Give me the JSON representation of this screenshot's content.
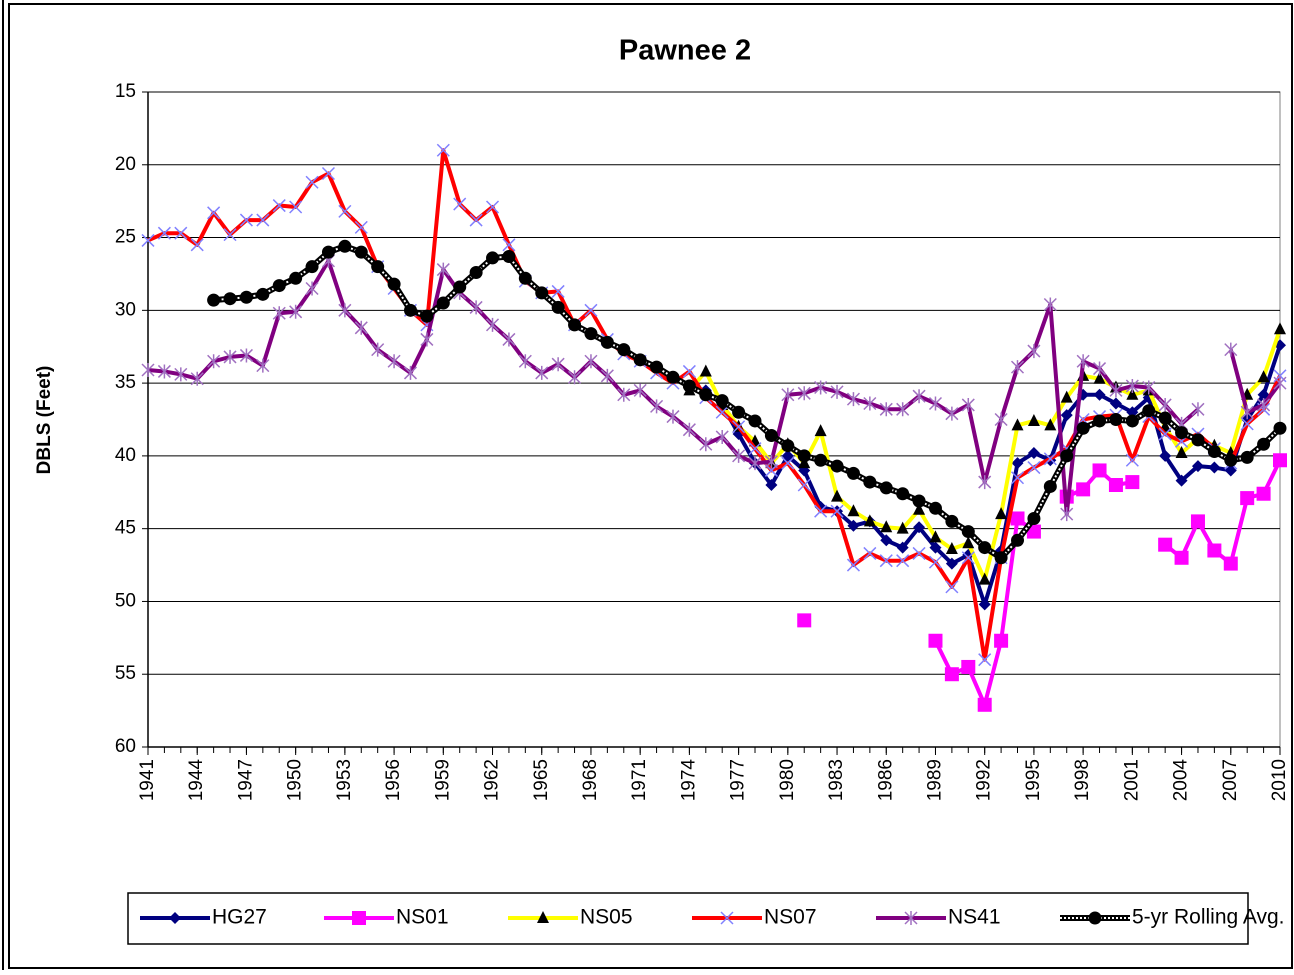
{
  "chart_data": {
    "type": "line",
    "title": "Pawnee 2",
    "y_label": "DBLS (Feet)",
    "x": [
      1941,
      1942,
      1943,
      1944,
      1945,
      1946,
      1947,
      1948,
      1949,
      1950,
      1951,
      1952,
      1953,
      1954,
      1955,
      1956,
      1957,
      1958,
      1959,
      1960,
      1961,
      1962,
      1963,
      1964,
      1965,
      1966,
      1967,
      1968,
      1969,
      1970,
      1971,
      1972,
      1973,
      1974,
      1975,
      1976,
      1977,
      1978,
      1979,
      1980,
      1981,
      1982,
      1983,
      1984,
      1985,
      1986,
      1987,
      1988,
      1989,
      1990,
      1991,
      1992,
      1993,
      1994,
      1995,
      1996,
      1997,
      1998,
      1999,
      2000,
      2001,
      2002,
      2003,
      2004,
      2005,
      2006,
      2007,
      2008,
      2009,
      2010
    ],
    "xlim": [
      1941,
      2010
    ],
    "xticks": [
      1941,
      1944,
      1947,
      1950,
      1953,
      1956,
      1959,
      1962,
      1965,
      1968,
      1971,
      1974,
      1977,
      1980,
      1983,
      1986,
      1989,
      1992,
      1995,
      1998,
      2001,
      2004,
      2007,
      2010
    ],
    "ylim": [
      15,
      60
    ],
    "y_reversed": true,
    "yticks": [
      15,
      20,
      25,
      30,
      35,
      40,
      45,
      50,
      55,
      60
    ],
    "grid": true,
    "legend": "bottom",
    "series": [
      {
        "name": "HG27",
        "color": "#000080",
        "marker": "diamond",
        "marker_color": "#000080",
        "values": [
          null,
          null,
          null,
          null,
          null,
          null,
          null,
          null,
          null,
          null,
          null,
          null,
          null,
          null,
          null,
          null,
          null,
          null,
          null,
          null,
          null,
          null,
          null,
          null,
          null,
          null,
          null,
          null,
          null,
          null,
          null,
          null,
          null,
          35.3,
          35.5,
          36.5,
          38.5,
          40.5,
          42,
          40,
          41,
          43.5,
          43.8,
          44.8,
          44.5,
          45.8,
          46.3,
          44.9,
          46.3,
          47.4,
          46.8,
          50.2,
          46.5,
          40.5,
          39.8,
          40.3,
          37.2,
          35.8,
          35.8,
          36.4,
          37,
          36,
          40,
          41.7,
          40.7,
          40.8,
          41,
          37.5,
          35.8,
          32.4
        ]
      },
      {
        "name": "NS01",
        "color": "#ff00ff",
        "marker": "square",
        "marker_color": "#ff00ff",
        "values": [
          null,
          null,
          null,
          null,
          null,
          null,
          null,
          null,
          null,
          null,
          null,
          null,
          null,
          null,
          null,
          null,
          null,
          null,
          null,
          null,
          null,
          null,
          null,
          null,
          null,
          null,
          null,
          null,
          null,
          null,
          null,
          null,
          null,
          null,
          null,
          null,
          null,
          null,
          null,
          null,
          51.3,
          null,
          null,
          null,
          null,
          null,
          null,
          null,
          52.7,
          55,
          54.5,
          57.1,
          52.7,
          44.3,
          45.2,
          null,
          42.8,
          42.3,
          41,
          42,
          41.8,
          null,
          46.1,
          47,
          44.5,
          46.5,
          47.4,
          42.9,
          42.6,
          40.3
        ]
      },
      {
        "name": "NS05",
        "color": "#ffff00",
        "marker": "triangle",
        "marker_color": "#000000",
        "values": [
          null,
          null,
          null,
          null,
          null,
          null,
          null,
          null,
          null,
          null,
          null,
          null,
          null,
          null,
          null,
          null,
          null,
          null,
          null,
          null,
          null,
          null,
          null,
          null,
          null,
          null,
          null,
          null,
          null,
          null,
          null,
          null,
          null,
          35.5,
          34.2,
          36.5,
          38,
          39,
          40.5,
          39.2,
          40.5,
          38.3,
          42.8,
          43.8,
          44.5,
          44.9,
          45,
          43.7,
          45.6,
          46.4,
          46,
          48.5,
          44,
          37.9,
          37.6,
          37.9,
          36,
          34.5,
          34.7,
          35.3,
          35.8,
          35.5,
          38,
          39.8,
          38.8,
          39.3,
          39.8,
          35.8,
          34.6,
          31.3
        ]
      },
      {
        "name": "NS07",
        "color": "#ff0000",
        "marker": "x",
        "marker_color": "#8080ff",
        "values": [
          25.2,
          24.7,
          24.7,
          25.5,
          23.3,
          24.8,
          23.8,
          23.8,
          22.8,
          22.9,
          21.2,
          20.6,
          23.2,
          24.3,
          27,
          28.5,
          30,
          31,
          19,
          22.7,
          23.8,
          22.9,
          25.5,
          28,
          28.8,
          28.7,
          31,
          30,
          32,
          33,
          33.5,
          34.3,
          35,
          34.2,
          36,
          37,
          38,
          39.5,
          41,
          40.5,
          42,
          43.8,
          43.8,
          47.5,
          46.7,
          47.2,
          47.2,
          46.7,
          47.3,
          49,
          47,
          54,
          47,
          41.5,
          40.8,
          40.2,
          39.5,
          37.5,
          37.3,
          37.2,
          40.3,
          37.3,
          38.5,
          39,
          38.5,
          39.5,
          40.5,
          37.8,
          36.8,
          34.5
        ]
      },
      {
        "name": "NS41",
        "color": "#800080",
        "marker": "star",
        "marker_color": "#a070c0",
        "values": [
          34.1,
          34.2,
          34.4,
          34.7,
          33.5,
          33.2,
          33.1,
          33.8,
          30.2,
          30.1,
          28.5,
          26.6,
          30,
          31.2,
          32.7,
          33.5,
          34.3,
          32,
          27.2,
          28.8,
          29.8,
          31,
          32,
          33.5,
          34.3,
          33.7,
          34.6,
          33.5,
          34.5,
          35.8,
          35.5,
          36.6,
          37.3,
          38.2,
          39.2,
          38.7,
          40,
          40.5,
          40.4,
          35.8,
          35.7,
          35.3,
          35.6,
          36.1,
          36.4,
          36.8,
          36.8,
          35.9,
          36.4,
          37.1,
          36.5,
          41.8,
          37.5,
          33.9,
          32.8,
          29.6,
          44,
          33.5,
          34,
          35.5,
          35.2,
          35.3,
          36.5,
          37.8,
          36.8,
          null,
          32.7,
          37,
          36.5,
          35
        ]
      },
      {
        "name": "5-yr Rolling Avg.",
        "color": "#000000",
        "marker": "circle",
        "marker_color": "#000000",
        "dashed": true,
        "values": [
          null,
          null,
          null,
          null,
          29.3,
          29.2,
          29.1,
          28.9,
          28.3,
          27.8,
          27,
          26,
          25.6,
          26,
          27,
          28.2,
          30,
          30.4,
          29.5,
          28.4,
          27.4,
          26.4,
          26.3,
          27.8,
          28.8,
          29.8,
          31,
          31.6,
          32.2,
          32.7,
          33.4,
          33.9,
          34.6,
          35.2,
          35.8,
          36.2,
          37,
          37.6,
          38.6,
          39.3,
          40,
          40.3,
          40.7,
          41.2,
          41.8,
          42.2,
          42.6,
          43.1,
          43.6,
          44.5,
          45.2,
          46.3,
          47,
          45.8,
          44.3,
          42.1,
          40,
          38.1,
          37.6,
          37.5,
          37.6,
          36.9,
          37.4,
          38.4,
          38.9,
          39.7,
          40.3,
          40.1,
          39.2,
          38.1
        ]
      }
    ]
  }
}
